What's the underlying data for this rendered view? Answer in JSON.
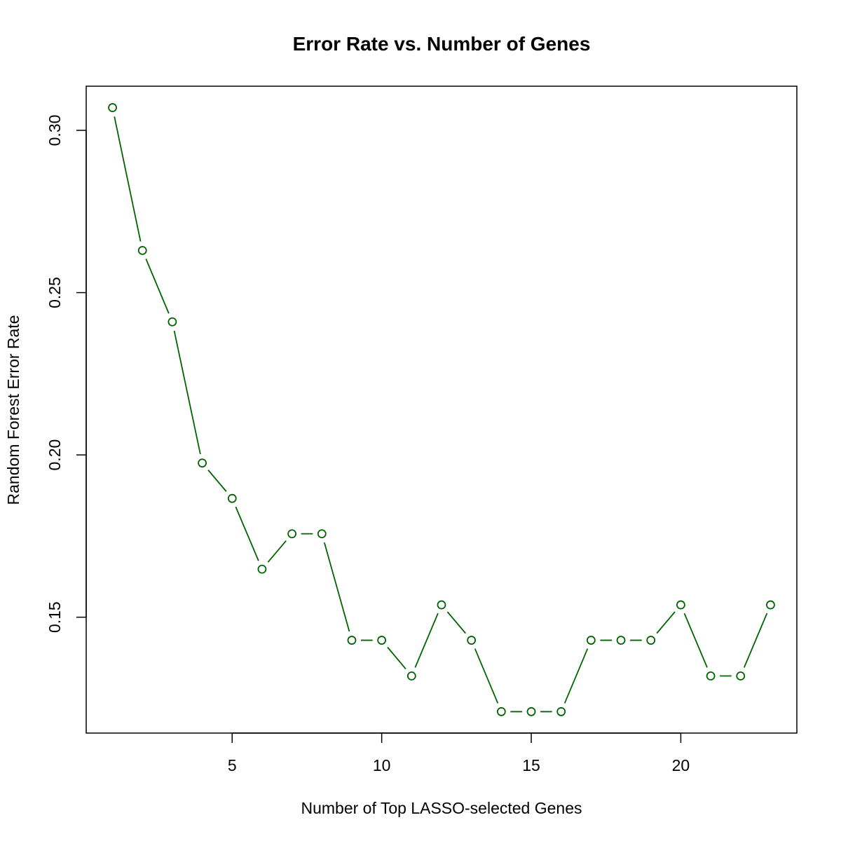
{
  "chart_data": {
    "type": "line",
    "title": "Error Rate vs. Number of Genes",
    "xlabel": "Number of Top LASSO-selected Genes",
    "ylabel": "Random Forest Error Rate",
    "x": [
      1,
      2,
      3,
      4,
      5,
      6,
      7,
      8,
      9,
      10,
      11,
      12,
      13,
      14,
      15,
      16,
      17,
      18,
      19,
      20,
      21,
      22,
      23
    ],
    "series": [
      {
        "values": [
          0.307,
          0.263,
          0.241,
          0.1975,
          0.1866,
          0.1648,
          0.1757,
          0.1757,
          0.1429,
          0.1429,
          0.1319,
          0.1538,
          0.1429,
          0.1209,
          0.1209,
          0.1209,
          0.1429,
          0.1429,
          0.1429,
          0.1538,
          0.1319,
          0.1319,
          0.1538
        ],
        "color": "#006400"
      }
    ],
    "xlim": [
      0.12,
      23.88
    ],
    "ylim": [
      0.1143,
      0.3136
    ],
    "xticks": [
      5,
      10,
      15,
      20
    ],
    "xtick_labels": [
      "5",
      "10",
      "15",
      "20"
    ],
    "yticks": [
      0.15,
      0.2,
      0.25,
      0.3
    ],
    "ytick_labels": [
      "0.15",
      "0.20",
      "0.25",
      "0.30"
    ],
    "marker": "open-circle",
    "grid": false,
    "legend": "none"
  }
}
